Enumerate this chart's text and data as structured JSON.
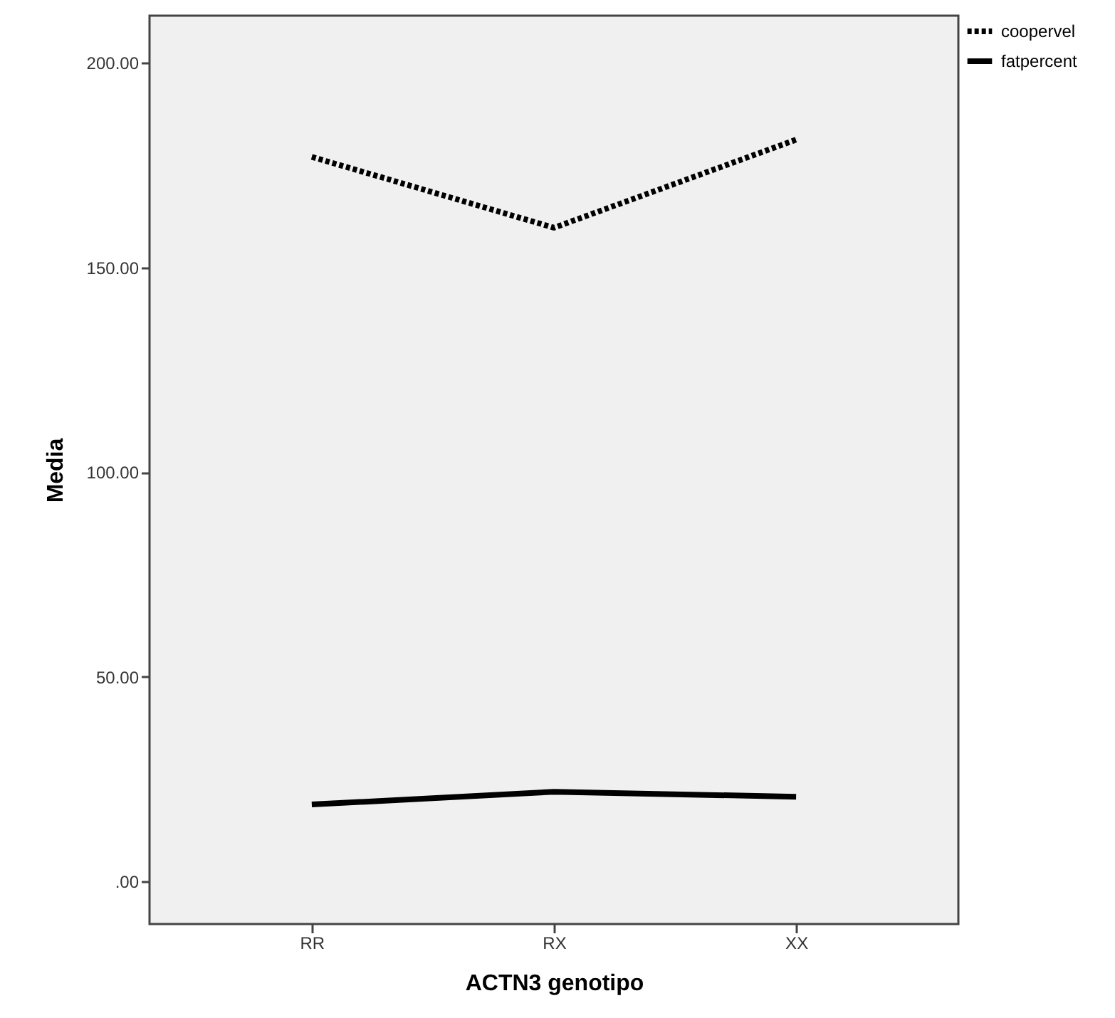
{
  "chart_data": {
    "type": "line",
    "xlabel": "ACTN3 genotipo",
    "ylabel": "Media",
    "categories": [
      "RR",
      "RX",
      "XX"
    ],
    "series": [
      {
        "name": "coopervel",
        "color": "#000000",
        "line_style": "dotted",
        "values": [
          177,
          159.7,
          181.2
        ]
      },
      {
        "name": "fatpercent",
        "color": "#000000",
        "line_style": "solid",
        "values": [
          18.8,
          21.9,
          20.7
        ]
      }
    ],
    "ylim": [
      -10.4,
      211.5
    ],
    "yticks": [
      {
        "value": 0,
        "label": ".00"
      },
      {
        "value": 50,
        "label": "50.00"
      },
      {
        "value": 100,
        "label": "100.00"
      },
      {
        "value": 150,
        "label": "150.00"
      },
      {
        "value": 200,
        "label": "200.00"
      }
    ],
    "grid": false,
    "legend": "top right",
    "marker": "none"
  }
}
